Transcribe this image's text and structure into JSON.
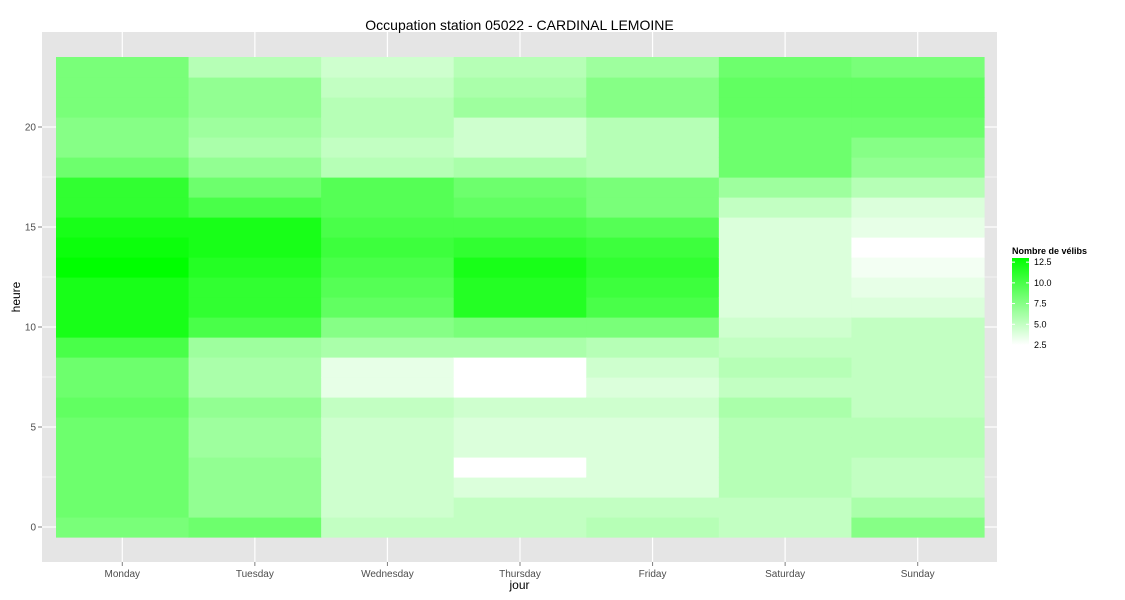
{
  "chart_data": {
    "type": "heatmap",
    "title": "Occupation station 05022 - CARDINAL LEMOINE",
    "xlabel": "jour",
    "ylabel": "heure",
    "x_categories": [
      "Monday",
      "Tuesday",
      "Wednesday",
      "Thursday",
      "Friday",
      "Saturday",
      "Sunday"
    ],
    "y_values": [
      0,
      1,
      2,
      3,
      4,
      5,
      6,
      7,
      8,
      9,
      10,
      11,
      12,
      13,
      14,
      15,
      16,
      17,
      18,
      19,
      20,
      21,
      22,
      23
    ],
    "y_ticks": [
      0,
      5,
      10,
      15,
      20
    ],
    "ylim": [
      -0.5,
      23.5
    ],
    "values": [
      [
        8.0,
        8.5,
        8.5,
        8.5,
        8.5,
        8.5,
        9.0,
        8.5,
        8.5,
        10.0,
        12.0,
        12.0,
        12.0,
        13.0,
        12.5,
        12.0,
        11.0,
        11.0,
        8.5,
        7.5,
        7.5,
        8.0,
        8.0,
        8.0
      ],
      [
        8.5,
        7.0,
        7.0,
        7.0,
        6.5,
        6.5,
        7.0,
        6.0,
        6.0,
        6.5,
        10.0,
        11.0,
        11.0,
        11.5,
        12.0,
        12.0,
        10.0,
        8.5,
        7.0,
        6.0,
        6.5,
        7.0,
        7.0,
        5.5
      ],
      [
        5.0,
        4.5,
        4.5,
        4.5,
        4.5,
        4.5,
        5.0,
        3.5,
        3.5,
        6.0,
        7.5,
        9.0,
        9.5,
        10.0,
        10.5,
        10.0,
        9.5,
        9.5,
        5.5,
        5.0,
        5.5,
        5.5,
        5.0,
        4.5
      ],
      [
        5.0,
        5.0,
        4.0,
        2.5,
        4.0,
        4.0,
        4.5,
        2.5,
        2.5,
        6.0,
        8.0,
        11.5,
        11.5,
        12.0,
        11.0,
        10.0,
        9.0,
        8.5,
        6.0,
        4.5,
        4.5,
        6.5,
        6.0,
        5.5
      ],
      [
        5.5,
        5.0,
        4.0,
        4.0,
        4.0,
        4.0,
        4.5,
        4.0,
        4.5,
        5.5,
        8.0,
        10.0,
        10.5,
        11.0,
        10.5,
        9.5,
        8.0,
        8.0,
        5.5,
        5.5,
        5.5,
        7.5,
        7.5,
        6.5
      ],
      [
        5.0,
        5.0,
        5.5,
        5.5,
        5.5,
        5.5,
        6.0,
        5.0,
        5.5,
        5.0,
        4.5,
        4.0,
        4.0,
        4.0,
        4.0,
        4.0,
        5.0,
        6.5,
        8.5,
        8.5,
        8.5,
        9.0,
        9.0,
        8.5
      ],
      [
        7.5,
        6.0,
        5.0,
        5.0,
        5.5,
        5.5,
        5.0,
        5.0,
        5.0,
        5.0,
        5.0,
        4.0,
        3.5,
        3.0,
        2.5,
        3.5,
        4.0,
        5.5,
        7.0,
        7.5,
        8.5,
        9.0,
        9.0,
        8.0
      ]
    ],
    "legend": {
      "title": "Nombre de vélibs",
      "labels": [
        "12.5",
        "10.0",
        "7.5",
        "5.0",
        "2.5"
      ],
      "breaks": [
        12.5,
        10.0,
        7.5,
        5.0,
        2.5
      ],
      "range": [
        2.5,
        13.0
      ]
    },
    "colors": {
      "low": "#ffffff",
      "high": "#00ff00",
      "panel_bg": "#e5e5e5",
      "grid": "#ffffff"
    }
  }
}
